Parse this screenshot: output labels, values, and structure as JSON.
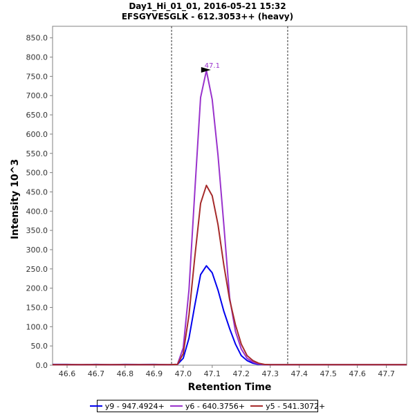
{
  "chart_data": {
    "type": "line",
    "title": "Day1_Hi_01_01, 2016-05-21 15:32",
    "subtitle": "EFSGYVESGLK - 612.3053++ (heavy)",
    "xlabel": "Retention Time",
    "ylabel": "Intensity 10^3",
    "xlim": [
      46.55,
      47.77
    ],
    "ylim": [
      0,
      880
    ],
    "x_ticks": [
      "46.6",
      "46.7",
      "46.8",
      "46.9",
      "47.0",
      "47.1",
      "47.2",
      "47.3",
      "47.4",
      "47.5",
      "47.6",
      "47.7"
    ],
    "y_ticks": [
      "0.0",
      "50.0",
      "100.0",
      "150.0",
      "200.0",
      "250.0",
      "300.0",
      "350.0",
      "400.0",
      "450.0",
      "500.0",
      "550.0",
      "600.0",
      "650.0",
      "700.0",
      "750.0",
      "800.0",
      "850.0"
    ],
    "x_tick_values": [
      46.6,
      46.7,
      46.8,
      46.9,
      47.0,
      47.1,
      47.2,
      47.3,
      47.4,
      47.5,
      47.6,
      47.7
    ],
    "y_tick_values": [
      0,
      50,
      100,
      150,
      200,
      250,
      300,
      350,
      400,
      450,
      500,
      550,
      600,
      650,
      700,
      750,
      800,
      850
    ],
    "x": [
      46.55,
      46.6,
      46.65,
      46.7,
      46.75,
      46.8,
      46.85,
      46.9,
      46.95,
      46.98,
      47.0,
      47.02,
      47.04,
      47.06,
      47.08,
      47.1,
      47.12,
      47.14,
      47.16,
      47.18,
      47.2,
      47.22,
      47.24,
      47.26,
      47.28,
      47.3,
      47.32,
      47.34,
      47.36,
      47.4,
      47.5,
      47.6,
      47.7,
      47.77
    ],
    "series": [
      {
        "name": "y9 - 947.4924+",
        "color": "#0000ee",
        "values": [
          2,
          2,
          1.5,
          2,
          1.5,
          2,
          1.8,
          2,
          1.5,
          2,
          18,
          70,
          155,
          235,
          258,
          240,
          195,
          140,
          95,
          55,
          25,
          12,
          5,
          2,
          1.5,
          1.5,
          1.5,
          1.5,
          1.5,
          1.5,
          1.5,
          1.5,
          1.5,
          1.5
        ]
      },
      {
        "name": "y6 - 640.3756+",
        "color": "#9932cc",
        "values": [
          1.5,
          1.5,
          1.5,
          1.5,
          1.5,
          1.5,
          1.5,
          1.5,
          1.5,
          2,
          45,
          195,
          450,
          695,
          765,
          690,
          545,
          365,
          175,
          88,
          42,
          18,
          8,
          3,
          1.5,
          1.5,
          1.5,
          1.5,
          1.5,
          1.5,
          1.5,
          1.5,
          1.5,
          1.5
        ]
      },
      {
        "name": "y5 - 541.3072+",
        "color": "#a52a2a",
        "values": [
          1.5,
          1.5,
          1.5,
          1.5,
          1.5,
          1.5,
          1.5,
          1.5,
          1.5,
          2,
          30,
          130,
          280,
          420,
          467,
          440,
          365,
          260,
          170,
          105,
          55,
          25,
          12,
          5,
          2,
          1.5,
          1.5,
          1.5,
          1.5,
          1.5,
          1.5,
          1.5,
          1.5,
          1.5
        ]
      }
    ],
    "peak_annotation": {
      "label": "47.1",
      "x": 47.1,
      "y": 765,
      "color": "#9932cc"
    },
    "boundary_lines": [
      46.96,
      47.36
    ],
    "grid": false,
    "legend_position": "bottom"
  }
}
